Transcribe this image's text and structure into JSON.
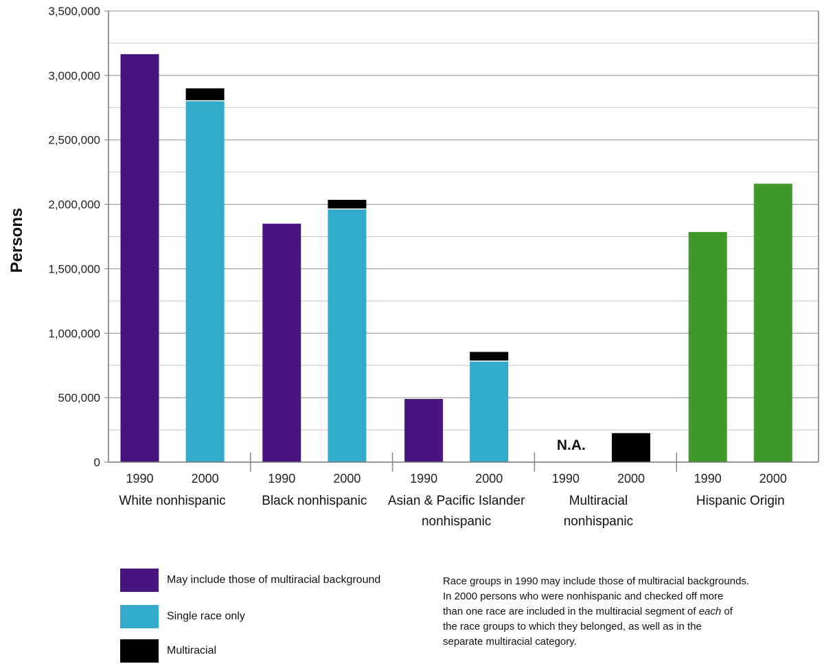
{
  "chart_data": {
    "type": "bar",
    "stacked": true,
    "title": "",
    "xlabel": "",
    "ylabel": "Persons",
    "ylim": [
      0,
      3500000
    ],
    "yticks": [
      0,
      500000,
      1000000,
      1500000,
      2000000,
      2500000,
      3000000,
      3500000
    ],
    "ytick_labels": [
      "0",
      "500,000",
      "1,000,000",
      "1,500,000",
      "2,000,000",
      "2,500,000",
      "3,000,000",
      "3,500,000"
    ],
    "grid": true,
    "groups": [
      {
        "name": "White nonhispanic",
        "name_lines": [
          "White nonhispanic"
        ],
        "bars": [
          {
            "year": "1990",
            "segments": [
              {
                "series": "May include those of multiracial background",
                "value": 3165000
              }
            ]
          },
          {
            "year": "2000",
            "segments": [
              {
                "series": "Single race only",
                "value": 2800000
              },
              {
                "series": "Multiracial",
                "value": 100000
              }
            ]
          }
        ]
      },
      {
        "name": "Black nonhispanic",
        "name_lines": [
          "Black nonhispanic"
        ],
        "bars": [
          {
            "year": "1990",
            "segments": [
              {
                "series": "May include those of multiracial background",
                "value": 1850000
              }
            ]
          },
          {
            "year": "2000",
            "segments": [
              {
                "series": "Single race only",
                "value": 1960000
              },
              {
                "series": "Multiracial",
                "value": 75000
              }
            ]
          }
        ]
      },
      {
        "name": "Asian & Pacific Islander nonhispanic",
        "name_lines": [
          "Asian & Pacific Islander",
          "nonhispanic"
        ],
        "bars": [
          {
            "year": "1990",
            "segments": [
              {
                "series": "May include those of multiracial background",
                "value": 490000
              }
            ]
          },
          {
            "year": "2000",
            "segments": [
              {
                "series": "Single race only",
                "value": 780000
              },
              {
                "series": "Multiracial",
                "value": 75000
              }
            ]
          }
        ]
      },
      {
        "name": "Multiracial nonhispanic",
        "name_lines": [
          "Multiracial",
          "nonhispanic"
        ],
        "bars": [
          {
            "year": "1990",
            "segments": [],
            "label": "N.A."
          },
          {
            "year": "2000",
            "segments": [
              {
                "series": "Multiracial",
                "value": 225000
              }
            ]
          }
        ]
      },
      {
        "name": "Hispanic Origin",
        "name_lines": [
          "Hispanic Origin"
        ],
        "bars": [
          {
            "year": "1990",
            "segments": [
              {
                "series": "Hispanic Origin",
                "value": 1785000
              }
            ]
          },
          {
            "year": "2000",
            "segments": [
              {
                "series": "Hispanic Origin",
                "value": 2160000
              }
            ]
          }
        ]
      }
    ],
    "colors": {
      "May include those of multiracial background": "#4a1480",
      "Single race only": "#33a9cc",
      "Multiracial": "#000000",
      "Hispanic Origin": "#40992a"
    }
  },
  "legend": {
    "items": [
      {
        "label": "May include those of multiracial background",
        "color": "#4a1480"
      },
      {
        "label": "Single race only",
        "color": "#33a9cc"
      },
      {
        "label": "Multiracial",
        "color": "#000000"
      }
    ]
  },
  "note": {
    "line1": "Race groups in 1990 may include those of multiracial backgrounds.",
    "line2": "In 2000 persons who were nonhispanic and checked off more",
    "line3_pre": "than one race are included in the multiracial segment of ",
    "line3_em": "each",
    "line3_post": " of",
    "line4": "the race groups to which they belonged, as well as in the",
    "line5": "separate multiracial category."
  }
}
